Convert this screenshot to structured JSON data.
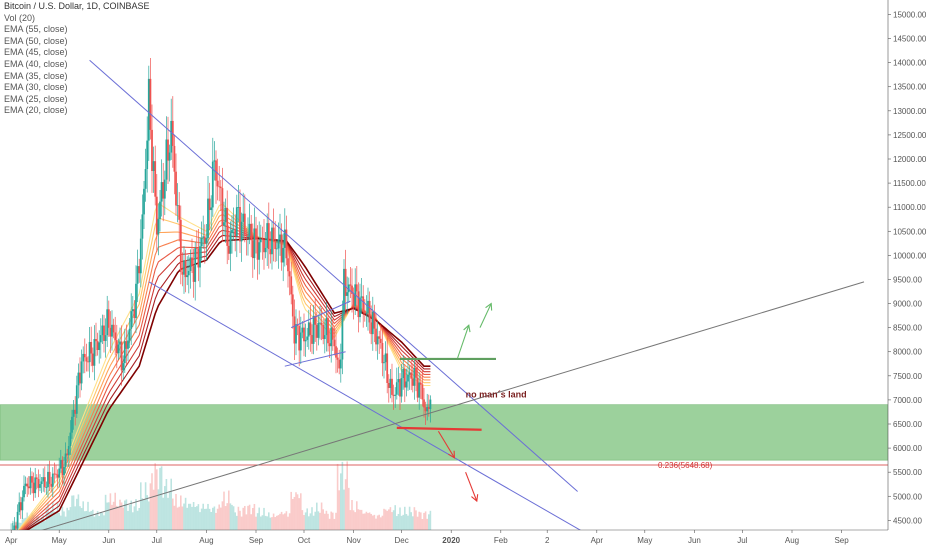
{
  "chart_data": {
    "type": "candlestick",
    "title": "Bitcoin / U.S. Dollar, 1D, COINBASE",
    "indicators": [
      "Vol (20)",
      "EMA (55, close)",
      "EMA (50, close)",
      "EMA (45, close)",
      "EMA (40, close)",
      "EMA (35, close)",
      "EMA (30, close)",
      "EMA (25, close)",
      "EMA (20, close)"
    ],
    "x_ticks": [
      "Apr",
      "May",
      "Jun",
      "Jul",
      "Aug",
      "Sep",
      "Oct",
      "Nov",
      "Dec",
      "2020",
      "Feb",
      "2",
      "Apr",
      "May",
      "Jun",
      "Jul",
      "Aug",
      "Sep"
    ],
    "y_ticks": [
      "4500.00",
      "5000.00",
      "5500.00",
      "6000.00",
      "6500.00",
      "7000.00",
      "7500.00",
      "8000.00",
      "8500.00",
      "9000.00",
      "9500.00",
      "10000.00",
      "10500.00",
      "11000.00",
      "11500.00",
      "12000.00",
      "12500.00",
      "13000.00",
      "13500.00",
      "14000.00",
      "14500.00",
      "15000.00"
    ],
    "ylim": [
      4300,
      15300
    ],
    "xlim": [
      "2019-03-25",
      "2020-09-30"
    ],
    "price_path": [
      [
        "2019-04-01",
        4100
      ],
      [
        "2019-04-10",
        5250
      ],
      [
        "2019-04-25",
        5300
      ],
      [
        "2019-05-05",
        5700
      ],
      [
        "2019-05-15",
        7800
      ],
      [
        "2019-05-22",
        8000
      ],
      [
        "2019-06-01",
        8600
      ],
      [
        "2019-06-10",
        7800
      ],
      [
        "2019-06-18",
        9200
      ],
      [
        "2019-06-22",
        10700
      ],
      [
        "2019-06-26",
        13200
      ],
      [
        "2019-07-01",
        10600
      ],
      [
        "2019-07-10",
        12600
      ],
      [
        "2019-07-17",
        9600
      ],
      [
        "2019-07-24",
        9800
      ],
      [
        "2019-08-01",
        10500
      ],
      [
        "2019-08-06",
        11900
      ],
      [
        "2019-08-15",
        10200
      ],
      [
        "2019-08-20",
        10800
      ],
      [
        "2019-09-01",
        10200
      ],
      [
        "2019-09-10",
        10300
      ],
      [
        "2019-09-20",
        10150
      ],
      [
        "2019-09-25",
        8400
      ],
      [
        "2019-10-01",
        8300
      ],
      [
        "2019-10-10",
        8550
      ],
      [
        "2019-10-20",
        8200
      ],
      [
        "2019-10-23",
        7500
      ],
      [
        "2019-10-26",
        9400
      ],
      [
        "2019-11-01",
        9200
      ],
      [
        "2019-11-10",
        8800
      ],
      [
        "2019-11-18",
        8100
      ],
      [
        "2019-11-25",
        7100
      ],
      [
        "2019-12-01",
        7400
      ],
      [
        "2019-12-08",
        7500
      ],
      [
        "2019-12-13",
        7200
      ],
      [
        "2019-12-17",
        6650
      ],
      [
        "2019-12-19",
        7200
      ]
    ],
    "ema_envelope": {
      "fastest": [
        [
          "2019-04-01",
          4100
        ],
        [
          "2019-05-01",
          5400
        ],
        [
          "2019-06-01",
          8000
        ],
        [
          "2019-06-20",
          9200
        ],
        [
          "2019-07-01",
          11100
        ],
        [
          "2019-07-15",
          10800
        ],
        [
          "2019-08-01",
          10500
        ],
        [
          "2019-08-10",
          11100
        ],
        [
          "2019-09-01",
          10400
        ],
        [
          "2019-09-20",
          10200
        ],
        [
          "2019-10-01",
          8900
        ],
        [
          "2019-10-20",
          8300
        ],
        [
          "2019-11-01",
          9000
        ],
        [
          "2019-11-15",
          8700
        ],
        [
          "2019-12-01",
          7600
        ],
        [
          "2019-12-15",
          7300
        ]
      ],
      "slowest": [
        [
          "2019-04-01",
          4100
        ],
        [
          "2019-05-01",
          4700
        ],
        [
          "2019-06-01",
          6800
        ],
        [
          "2019-06-20",
          7700
        ],
        [
          "2019-07-01",
          8900
        ],
        [
          "2019-07-15",
          9700
        ],
        [
          "2019-08-01",
          9900
        ],
        [
          "2019-08-10",
          10300
        ],
        [
          "2019-09-01",
          10350
        ],
        [
          "2019-09-20",
          10300
        ],
        [
          "2019-10-01",
          9800
        ],
        [
          "2019-10-20",
          8800
        ],
        [
          "2019-11-01",
          8900
        ],
        [
          "2019-11-15",
          8650
        ],
        [
          "2019-12-01",
          8200
        ],
        [
          "2019-12-15",
          7700
        ]
      ]
    },
    "volume_levels": [
      0.15,
      0.25,
      0.2,
      0.35,
      0.3,
      0.5,
      0.4,
      0.3,
      0.55,
      0.45,
      0.4,
      0.6,
      0.9,
      0.7,
      0.5,
      0.45,
      0.4,
      0.35,
      0.5,
      0.3,
      0.35,
      0.3,
      0.25,
      0.3,
      0.6,
      0.3,
      0.35,
      0.25,
      0.9,
      0.4,
      0.3,
      0.25,
      0.35,
      0.3,
      0.3,
      0.25
    ],
    "zones": [
      {
        "type": "support_zone",
        "y_range": [
          5750,
          6900
        ],
        "color": "#8bc98b"
      }
    ],
    "horizontal_lines": [
      {
        "label": "0.236(5648.68)",
        "y": 5648.68,
        "color": "#d32f2f"
      }
    ],
    "trendlines": [
      {
        "name": "upper-channel",
        "from": [
          "2019-05-20",
          14050
        ],
        "to": [
          "2020-03-20",
          5100
        ],
        "color": "#6b6fd6"
      },
      {
        "name": "lower-channel",
        "from": [
          "2019-06-26",
          9450
        ],
        "to": [
          "2020-04-01",
          4100
        ],
        "color": "#6b6fd6"
      },
      {
        "name": "long-trendline",
        "from": [
          "2019-04-01",
          4100
        ],
        "to": [
          "2020-09-15",
          9450
        ],
        "color": "#777777"
      },
      {
        "name": "small-channel-upper",
        "from": [
          "2019-09-23",
          8500
        ],
        "to": [
          "2019-10-30",
          9050
        ],
        "color": "#6b6fd6"
      },
      {
        "name": "small-channel-lower",
        "from": [
          "2019-09-19",
          7700
        ],
        "to": [
          "2019-10-27",
          8000
        ],
        "color": "#6b6fd6"
      },
      {
        "name": "resistance",
        "from": [
          "2019-11-30",
          7850
        ],
        "to": [
          "2020-01-29",
          7850
        ],
        "color": "#5f9f5f"
      },
      {
        "name": "support",
        "from": [
          "2019-11-28",
          6420
        ],
        "to": [
          "2020-01-20",
          6380
        ],
        "color": "#e53935"
      }
    ],
    "arrows": [
      {
        "direction": "up",
        "from": [
          "2020-01-05",
          7870
        ],
        "to": [
          "2020-01-12",
          8550
        ],
        "color": "#66bb6a"
      },
      {
        "direction": "up",
        "from": [
          "2020-01-19",
          8500
        ],
        "to": [
          "2020-01-26",
          9000
        ],
        "color": "#66bb6a"
      },
      {
        "direction": "down",
        "from": [
          "2019-12-24",
          6350
        ],
        "to": [
          "2020-01-03",
          5800
        ],
        "color": "#e53935"
      },
      {
        "direction": "down",
        "from": [
          "2020-01-10",
          5500
        ],
        "to": [
          "2020-01-17",
          4900
        ],
        "color": "#e53935"
      }
    ],
    "annotations": [
      {
        "text": "no man´s land",
        "x": "2020-01-10",
        "y": 7050
      }
    ],
    "colors": {
      "up": "#26a69a",
      "down": "#ef5350",
      "ema_fast": "#ffe082",
      "ema_slow": "#7f0000"
    }
  }
}
